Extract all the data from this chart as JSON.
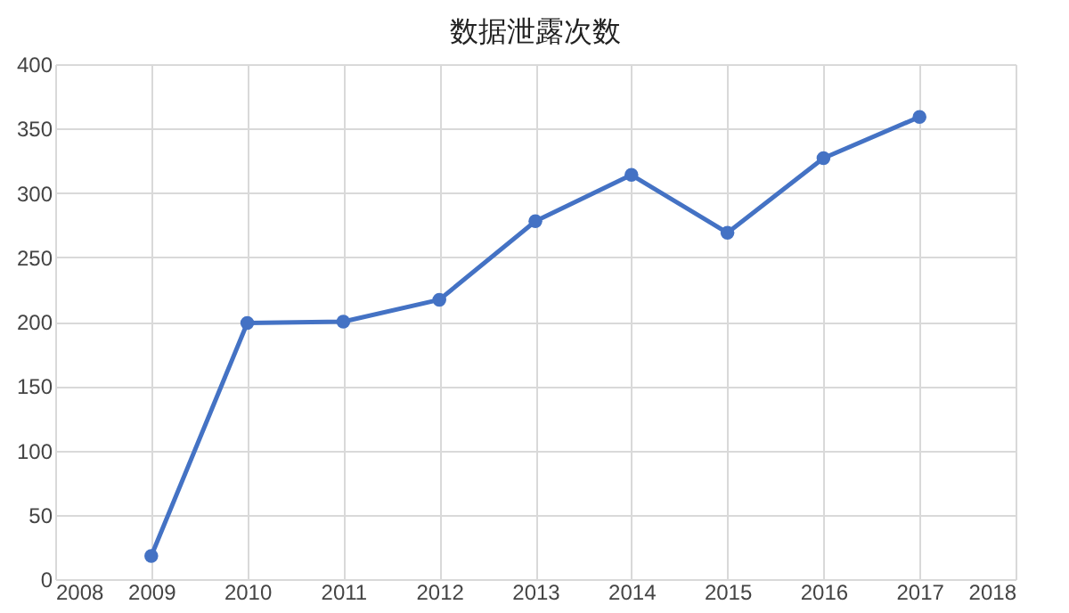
{
  "chart_data": {
    "type": "line",
    "title": "数据泄露次数",
    "x": [
      2009,
      2010,
      2011,
      2012,
      2013,
      2014,
      2015,
      2016,
      2017
    ],
    "series": [
      {
        "color": "#4472c4",
        "values": [
          18,
          199,
          200,
          217,
          278,
          314,
          269,
          327,
          359
        ]
      }
    ],
    "xlim": [
      2008,
      2018
    ],
    "xticks": [
      2008,
      2009,
      2010,
      2011,
      2012,
      2013,
      2014,
      2015,
      2016,
      2017,
      2018
    ],
    "ylim": [
      0,
      400
    ],
    "yticks": [
      0,
      50,
      100,
      150,
      200,
      250,
      300,
      350,
      400
    ],
    "grid": true,
    "marker": "circle",
    "line_style": "solid",
    "legend": false
  }
}
